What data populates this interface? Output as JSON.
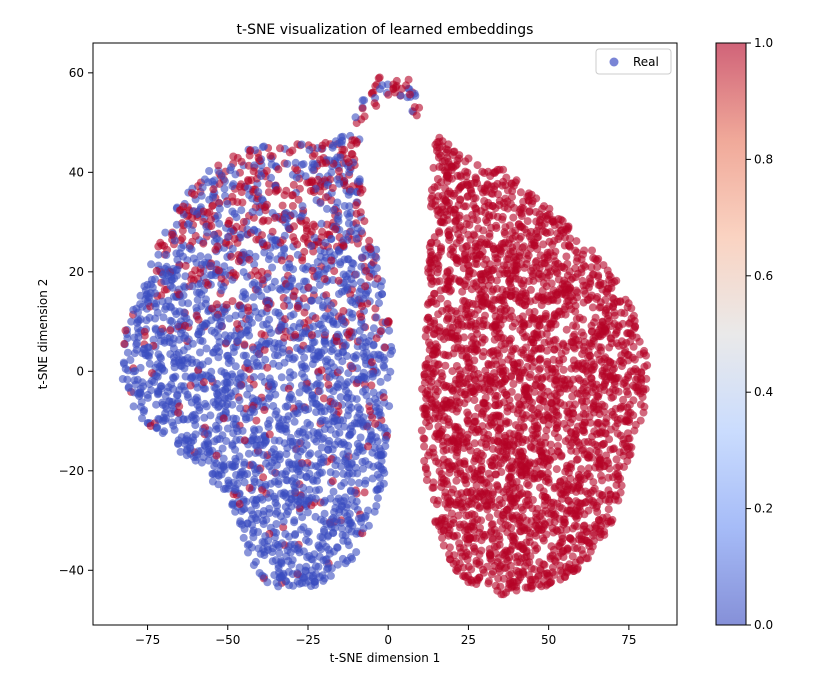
{
  "chart_data": {
    "type": "scatter",
    "title": "t-SNE visualization of learned embeddings",
    "xlabel": "t-SNE dimension 1",
    "ylabel": "t-SNE dimension 2",
    "xlim": [
      -92,
      90
    ],
    "ylim": [
      -51,
      66
    ],
    "xticks": [
      -75,
      -50,
      -25,
      0,
      25,
      50,
      75
    ],
    "xtick_labels": [
      "−75",
      "−50",
      "−25",
      "0",
      "25",
      "50",
      "75"
    ],
    "yticks": [
      -40,
      -20,
      0,
      20,
      40,
      60
    ],
    "ytick_labels": [
      "−40",
      "−20",
      "0",
      "20",
      "40",
      "60"
    ],
    "grid": false,
    "legend": {
      "position": "top-right",
      "entries": [
        {
          "label": "Real",
          "color": "#7a85d6"
        }
      ]
    },
    "colorbar": {
      "colormap": "coolwarm",
      "range": [
        0.0,
        1.0
      ],
      "ticks": [
        0.0,
        0.2,
        0.4,
        0.6,
        0.8,
        1.0
      ],
      "tick_labels": [
        "0.0",
        "0.2",
        "0.4",
        "0.6",
        "0.8",
        "1.0"
      ],
      "stops": [
        "#3b4cc0",
        "#6f92f3",
        "#aac7fd",
        "#dddcdc",
        "#f7b89c",
        "#e7745b",
        "#b40426"
      ]
    },
    "marker_alpha": 0.6,
    "colors": {
      "real": "#3b4cc0",
      "fake": "#b40426"
    },
    "clusters": [
      {
        "name": "left cluster (mixed, mostly value 0)",
        "outline": [
          [
            -83,
            -2
          ],
          [
            -82,
            8
          ],
          [
            -78,
            16
          ],
          [
            -73,
            24
          ],
          [
            -65,
            34
          ],
          [
            -57,
            40
          ],
          [
            -47,
            44
          ],
          [
            -37,
            46
          ],
          [
            -26,
            46
          ],
          [
            -17,
            46
          ],
          [
            -13,
            48
          ],
          [
            -10,
            52
          ],
          [
            -7,
            56
          ],
          [
            -3,
            59
          ],
          [
            2,
            60
          ],
          [
            6,
            59
          ],
          [
            9,
            56
          ],
          [
            11,
            52
          ],
          [
            8,
            50
          ],
          [
            5,
            54
          ],
          [
            2,
            56
          ],
          [
            -2,
            55
          ],
          [
            -6,
            51
          ],
          [
            -9,
            46
          ],
          [
            -9,
            40
          ],
          [
            -6,
            32
          ],
          [
            -3,
            22
          ],
          [
            0,
            12
          ],
          [
            2,
            2
          ],
          [
            0,
            -10
          ],
          [
            -1,
            -22
          ],
          [
            -5,
            -30
          ],
          [
            -9,
            -36
          ],
          [
            -14,
            -40
          ],
          [
            -22,
            -43
          ],
          [
            -32,
            -44
          ],
          [
            -40,
            -42
          ],
          [
            -44,
            -36
          ],
          [
            -48,
            -28
          ],
          [
            -55,
            -22
          ],
          [
            -63,
            -17
          ],
          [
            -72,
            -13
          ],
          [
            -79,
            -8
          ]
        ],
        "fraction_value_1": 0.22,
        "count": 2600
      },
      {
        "name": "right cluster (value 1)",
        "outline": [
          [
            14,
            48
          ],
          [
            19,
            46
          ],
          [
            24,
            43
          ],
          [
            31,
            42
          ],
          [
            38,
            40
          ],
          [
            45,
            36
          ],
          [
            52,
            32
          ],
          [
            60,
            27
          ],
          [
            67,
            22
          ],
          [
            74,
            16
          ],
          [
            78,
            10
          ],
          [
            81,
            2
          ],
          [
            80,
            -8
          ],
          [
            76,
            -16
          ],
          [
            73,
            -24
          ],
          [
            69,
            -32
          ],
          [
            63,
            -38
          ],
          [
            55,
            -42
          ],
          [
            45,
            -44
          ],
          [
            35,
            -45
          ],
          [
            27,
            -44
          ],
          [
            21,
            -40
          ],
          [
            16,
            -34
          ],
          [
            13,
            -26
          ],
          [
            11,
            -18
          ],
          [
            10,
            -8
          ],
          [
            11,
            2
          ],
          [
            12,
            12
          ],
          [
            12,
            22
          ],
          [
            13,
            32
          ],
          [
            14,
            40
          ]
        ],
        "fraction_value_1": 1.0,
        "count": 2800
      }
    ]
  }
}
